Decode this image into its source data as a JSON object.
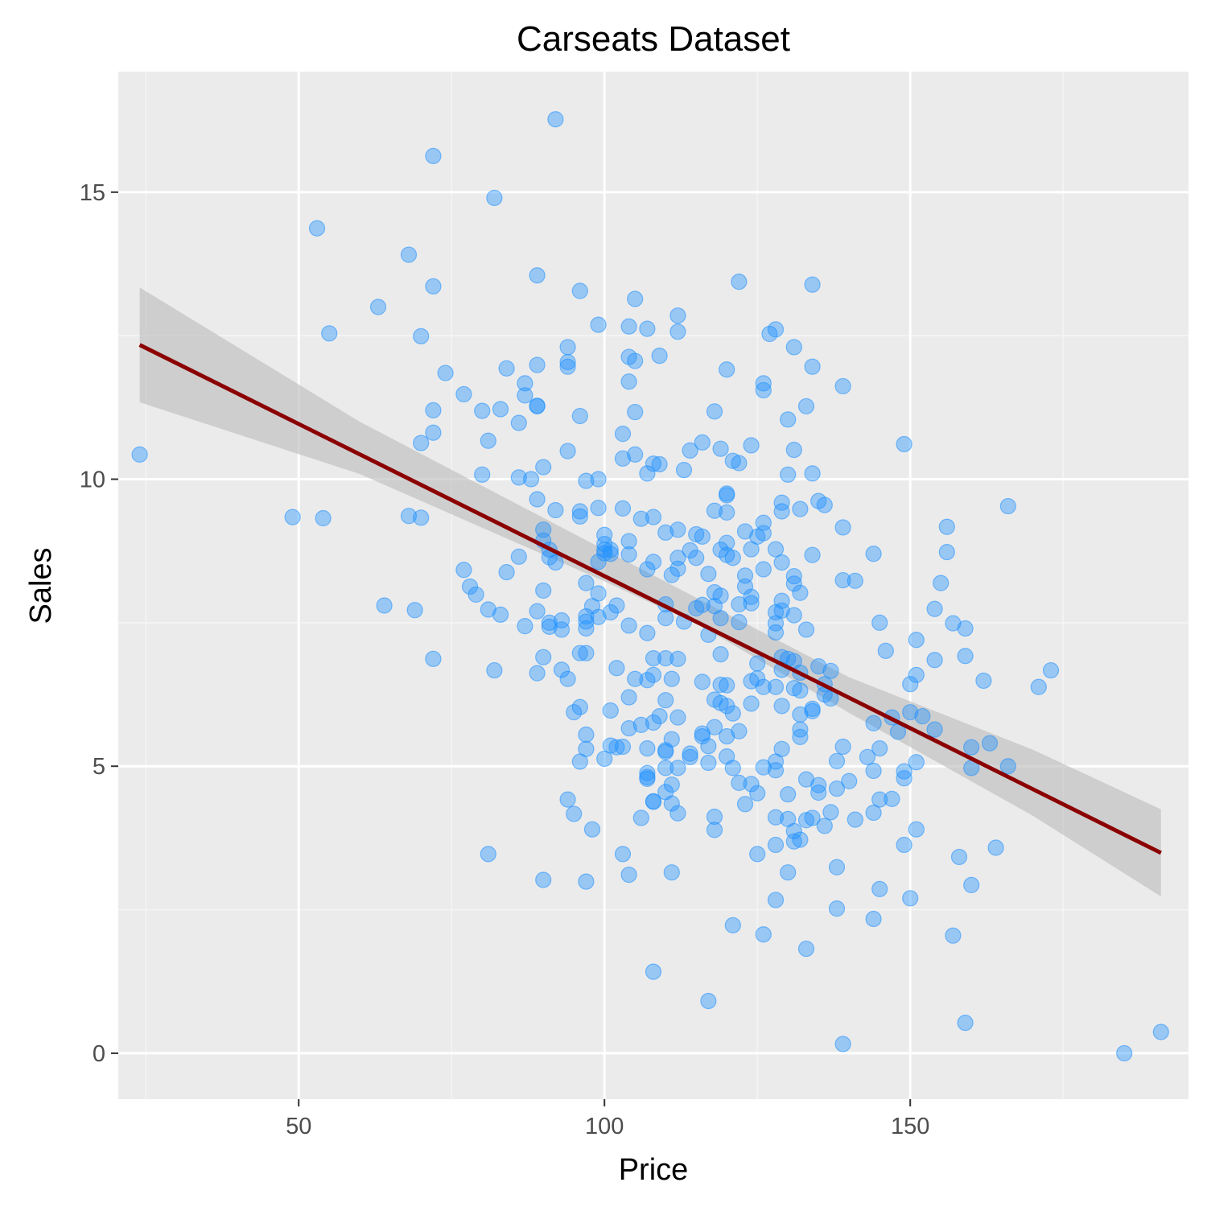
{
  "chart_data": {
    "type": "scatter",
    "title": "Carseats Dataset",
    "xlabel": "Price",
    "ylabel": "Sales",
    "xlim": [
      20.5,
      195.5
    ],
    "ylim": [
      -0.8,
      17.1
    ],
    "x_ticks": [
      50,
      100,
      150
    ],
    "y_ticks": [
      0,
      5,
      10,
      15
    ],
    "x_tick_labels": [
      "50",
      "100",
      "150"
    ],
    "y_tick_labels": [
      "0",
      "5",
      "10",
      "15"
    ],
    "grid": true,
    "legend": "none",
    "colors": {
      "panel_background": "#EBEBEB",
      "grid_major": "#FFFFFF",
      "grid_minor": "#F5F5F5",
      "points": "#1E90FF",
      "fit_line": "#8B0000",
      "confidence_band": "#BEBEBE"
    },
    "points": [
      [
        24,
        10.43
      ],
      [
        49,
        9.34
      ],
      [
        53,
        14.37
      ],
      [
        54,
        9.32
      ],
      [
        55,
        12.54
      ],
      [
        63,
        13.0
      ],
      [
        64,
        7.8
      ],
      [
        68,
        13.91
      ],
      [
        68,
        9.36
      ],
      [
        69,
        7.72
      ],
      [
        70,
        12.49
      ],
      [
        70,
        10.63
      ],
      [
        70,
        9.33
      ],
      [
        72,
        15.63
      ],
      [
        72,
        13.36
      ],
      [
        72,
        11.2
      ],
      [
        72,
        10.81
      ],
      [
        72,
        6.87
      ],
      [
        74,
        11.85
      ],
      [
        77,
        11.48
      ],
      [
        77,
        8.42
      ],
      [
        78,
        8.13
      ],
      [
        79,
        7.99
      ],
      [
        80,
        11.19
      ],
      [
        80,
        10.08
      ],
      [
        81,
        10.67
      ],
      [
        81,
        7.73
      ],
      [
        81,
        3.47
      ],
      [
        82,
        14.9
      ],
      [
        82,
        6.67
      ],
      [
        83,
        11.22
      ],
      [
        83,
        7.64
      ],
      [
        84,
        11.93
      ],
      [
        84,
        8.38
      ],
      [
        86,
        10.98
      ],
      [
        86,
        10.03
      ],
      [
        86,
        8.65
      ],
      [
        87,
        11.67
      ],
      [
        87,
        11.46
      ],
      [
        87,
        7.44
      ],
      [
        88,
        10.0
      ],
      [
        89,
        13.55
      ],
      [
        89,
        11.99
      ],
      [
        89,
        11.27
      ],
      [
        89,
        11.28
      ],
      [
        89,
        9.65
      ],
      [
        89,
        7.7
      ],
      [
        89,
        6.62
      ],
      [
        90,
        10.21
      ],
      [
        90,
        9.12
      ],
      [
        90,
        8.93
      ],
      [
        90,
        8.06
      ],
      [
        90,
        6.9
      ],
      [
        90,
        3.02
      ],
      [
        91,
        8.77
      ],
      [
        91,
        8.64
      ],
      [
        91,
        7.5
      ],
      [
        91,
        7.43
      ],
      [
        92,
        16.27
      ],
      [
        92,
        9.46
      ],
      [
        92,
        8.55
      ],
      [
        93,
        7.54
      ],
      [
        93,
        7.38
      ],
      [
        93,
        6.68
      ],
      [
        94,
        12.3
      ],
      [
        94,
        11.96
      ],
      [
        94,
        12.04
      ],
      [
        94,
        10.49
      ],
      [
        94,
        6.52
      ],
      [
        94,
        4.42
      ],
      [
        95,
        5.94
      ],
      [
        95,
        4.17
      ],
      [
        96,
        13.28
      ],
      [
        96,
        11.1
      ],
      [
        96,
        9.44
      ],
      [
        96,
        9.35
      ],
      [
        96,
        6.97
      ],
      [
        96,
        6.03
      ],
      [
        96,
        5.08
      ],
      [
        97,
        9.97
      ],
      [
        97,
        8.19
      ],
      [
        97,
        7.61
      ],
      [
        97,
        7.4
      ],
      [
        97,
        7.52
      ],
      [
        97,
        6.97
      ],
      [
        97,
        5.55
      ],
      [
        97,
        5.3
      ],
      [
        97,
        2.99
      ],
      [
        98,
        7.79
      ],
      [
        98,
        3.9
      ],
      [
        99,
        12.69
      ],
      [
        99,
        10.0
      ],
      [
        99,
        9.5
      ],
      [
        99,
        8.56
      ],
      [
        99,
        8.01
      ],
      [
        99,
        7.6
      ],
      [
        100,
        9.03
      ],
      [
        100,
        8.87
      ],
      [
        100,
        8.77
      ],
      [
        100,
        8.71
      ],
      [
        100,
        5.13
      ],
      [
        101,
        8.77
      ],
      [
        101,
        8.7
      ],
      [
        101,
        7.68
      ],
      [
        101,
        5.97
      ],
      [
        101,
        5.36
      ],
      [
        102,
        7.8
      ],
      [
        102,
        6.71
      ],
      [
        102,
        5.33
      ],
      [
        103,
        10.79
      ],
      [
        103,
        10.36
      ],
      [
        103,
        9.49
      ],
      [
        103,
        5.34
      ],
      [
        103,
        3.47
      ],
      [
        104,
        12.66
      ],
      [
        104,
        12.13
      ],
      [
        104,
        11.7
      ],
      [
        104,
        8.92
      ],
      [
        104,
        8.69
      ],
      [
        104,
        7.45
      ],
      [
        104,
        6.2
      ],
      [
        104,
        5.66
      ],
      [
        104,
        3.11
      ],
      [
        105,
        13.14
      ],
      [
        105,
        12.06
      ],
      [
        105,
        11.17
      ],
      [
        105,
        10.43
      ],
      [
        105,
        6.52
      ],
      [
        106,
        9.31
      ],
      [
        106,
        5.72
      ],
      [
        106,
        4.1
      ],
      [
        107,
        12.62
      ],
      [
        107,
        10.1
      ],
      [
        107,
        8.43
      ],
      [
        107,
        7.32
      ],
      [
        107,
        6.5
      ],
      [
        107,
        5.31
      ],
      [
        107,
        4.81
      ],
      [
        107,
        4.88
      ],
      [
        107,
        4.78
      ],
      [
        108,
        10.27
      ],
      [
        108,
        9.34
      ],
      [
        108,
        8.56
      ],
      [
        108,
        6.88
      ],
      [
        108,
        6.59
      ],
      [
        108,
        5.76
      ],
      [
        108,
        4.38
      ],
      [
        108,
        4.39
      ],
      [
        108,
        1.42
      ],
      [
        109,
        12.15
      ],
      [
        109,
        10.26
      ],
      [
        109,
        5.87
      ],
      [
        110,
        9.07
      ],
      [
        110,
        7.82
      ],
      [
        110,
        7.58
      ],
      [
        110,
        6.88
      ],
      [
        110,
        6.15
      ],
      [
        110,
        5.25
      ],
      [
        110,
        5.28
      ],
      [
        110,
        4.97
      ],
      [
        110,
        4.55
      ],
      [
        111,
        8.33
      ],
      [
        111,
        6.52
      ],
      [
        111,
        5.47
      ],
      [
        111,
        4.68
      ],
      [
        111,
        4.35
      ],
      [
        111,
        3.15
      ],
      [
        112,
        12.85
      ],
      [
        112,
        12.57
      ],
      [
        112,
        9.12
      ],
      [
        112,
        8.63
      ],
      [
        112,
        8.44
      ],
      [
        112,
        6.87
      ],
      [
        112,
        5.85
      ],
      [
        112,
        4.97
      ],
      [
        112,
        4.18
      ],
      [
        113,
        10.16
      ],
      [
        113,
        7.52
      ],
      [
        114,
        10.5
      ],
      [
        114,
        8.76
      ],
      [
        114,
        5.22
      ],
      [
        114,
        5.16
      ],
      [
        115,
        8.63
      ],
      [
        115,
        9.04
      ],
      [
        115,
        7.75
      ],
      [
        116,
        10.64
      ],
      [
        116,
        9.0
      ],
      [
        116,
        7.81
      ],
      [
        116,
        6.47
      ],
      [
        116,
        5.57
      ],
      [
        116,
        5.52
      ],
      [
        117,
        8.35
      ],
      [
        117,
        7.29
      ],
      [
        117,
        5.35
      ],
      [
        117,
        5.06
      ],
      [
        117,
        0.91
      ],
      [
        118,
        11.18
      ],
      [
        118,
        9.45
      ],
      [
        118,
        8.03
      ],
      [
        118,
        7.79
      ],
      [
        118,
        6.16
      ],
      [
        118,
        5.68
      ],
      [
        118,
        4.12
      ],
      [
        118,
        3.89
      ],
      [
        119,
        10.53
      ],
      [
        119,
        8.77
      ],
      [
        119,
        7.97
      ],
      [
        119,
        7.58
      ],
      [
        119,
        6.95
      ],
      [
        119,
        6.42
      ],
      [
        119,
        6.1
      ],
      [
        120,
        11.91
      ],
      [
        120,
        9.72
      ],
      [
        120,
        9.75
      ],
      [
        120,
        9.42
      ],
      [
        120,
        8.89
      ],
      [
        120,
        8.68
      ],
      [
        120,
        6.41
      ],
      [
        120,
        6.05
      ],
      [
        120,
        5.52
      ],
      [
        120,
        5.17
      ],
      [
        121,
        10.32
      ],
      [
        121,
        8.63
      ],
      [
        121,
        5.92
      ],
      [
        121,
        4.97
      ],
      [
        121,
        2.23
      ],
      [
        122,
        13.44
      ],
      [
        122,
        10.28
      ],
      [
        122,
        7.82
      ],
      [
        122,
        7.51
      ],
      [
        122,
        5.61
      ],
      [
        122,
        4.71
      ],
      [
        123,
        9.09
      ],
      [
        123,
        8.32
      ],
      [
        123,
        8.13
      ],
      [
        123,
        4.34
      ],
      [
        124,
        10.59
      ],
      [
        124,
        8.78
      ],
      [
        124,
        7.95
      ],
      [
        124,
        7.84
      ],
      [
        124,
        6.48
      ],
      [
        124,
        6.09
      ],
      [
        124,
        4.69
      ],
      [
        125,
        9.0
      ],
      [
        125,
        6.79
      ],
      [
        125,
        6.53
      ],
      [
        125,
        4.53
      ],
      [
        125,
        3.47
      ],
      [
        126,
        11.67
      ],
      [
        126,
        11.55
      ],
      [
        126,
        9.24
      ],
      [
        126,
        9.06
      ],
      [
        126,
        8.43
      ],
      [
        126,
        6.38
      ],
      [
        126,
        4.98
      ],
      [
        126,
        2.07
      ],
      [
        127,
        12.53
      ],
      [
        128,
        12.61
      ],
      [
        128,
        8.78
      ],
      [
        128,
        7.68
      ],
      [
        128,
        7.49
      ],
      [
        128,
        7.33
      ],
      [
        128,
        6.38
      ],
      [
        128,
        5.08
      ],
      [
        128,
        4.93
      ],
      [
        128,
        4.11
      ],
      [
        128,
        3.63
      ],
      [
        128,
        2.67
      ],
      [
        129,
        9.59
      ],
      [
        129,
        9.44
      ],
      [
        129,
        8.55
      ],
      [
        129,
        7.88
      ],
      [
        129,
        7.71
      ],
      [
        129,
        6.9
      ],
      [
        129,
        6.68
      ],
      [
        129,
        6.05
      ],
      [
        129,
        5.3
      ],
      [
        130,
        11.04
      ],
      [
        130,
        10.08
      ],
      [
        130,
        6.87
      ],
      [
        130,
        4.51
      ],
      [
        130,
        4.08
      ],
      [
        130,
        3.15
      ],
      [
        131,
        12.3
      ],
      [
        131,
        10.51
      ],
      [
        131,
        8.31
      ],
      [
        131,
        8.18
      ],
      [
        131,
        7.63
      ],
      [
        131,
        6.83
      ],
      [
        131,
        6.36
      ],
      [
        131,
        3.87
      ],
      [
        131,
        3.69
      ],
      [
        132,
        9.48
      ],
      [
        132,
        8.02
      ],
      [
        132,
        6.63
      ],
      [
        132,
        6.32
      ],
      [
        132,
        5.9
      ],
      [
        132,
        5.64
      ],
      [
        132,
        5.51
      ],
      [
        132,
        3.72
      ],
      [
        133,
        11.27
      ],
      [
        133,
        7.38
      ],
      [
        133,
        4.77
      ],
      [
        133,
        4.06
      ],
      [
        133,
        1.82
      ],
      [
        134,
        13.39
      ],
      [
        134,
        11.96
      ],
      [
        134,
        10.1
      ],
      [
        134,
        8.68
      ],
      [
        134,
        6.0
      ],
      [
        134,
        5.96
      ],
      [
        134,
        4.1
      ],
      [
        135,
        9.62
      ],
      [
        135,
        6.74
      ],
      [
        135,
        4.67
      ],
      [
        135,
        4.54
      ],
      [
        136,
        9.55
      ],
      [
        136,
        6.43
      ],
      [
        136,
        6.25
      ],
      [
        136,
        3.96
      ],
      [
        137,
        6.66
      ],
      [
        137,
        6.18
      ],
      [
        137,
        4.2
      ],
      [
        138,
        4.61
      ],
      [
        138,
        5.09
      ],
      [
        138,
        3.24
      ],
      [
        138,
        2.52
      ],
      [
        139,
        11.62
      ],
      [
        139,
        9.16
      ],
      [
        139,
        8.24
      ],
      [
        139,
        5.34
      ],
      [
        139,
        0.16
      ],
      [
        140,
        4.74
      ],
      [
        141,
        8.23
      ],
      [
        141,
        4.07
      ],
      [
        143,
        5.16
      ],
      [
        144,
        8.7
      ],
      [
        144,
        5.75
      ],
      [
        144,
        4.92
      ],
      [
        144,
        4.19
      ],
      [
        144,
        2.34
      ],
      [
        145,
        7.5
      ],
      [
        145,
        5.31
      ],
      [
        145,
        4.42
      ],
      [
        145,
        2.86
      ],
      [
        146,
        7.01
      ],
      [
        147,
        5.85
      ],
      [
        147,
        4.43
      ],
      [
        148,
        5.6
      ],
      [
        149,
        10.61
      ],
      [
        149,
        4.91
      ],
      [
        149,
        4.79
      ],
      [
        149,
        3.63
      ],
      [
        150,
        6.43
      ],
      [
        150,
        5.94
      ],
      [
        150,
        2.7
      ],
      [
        151,
        7.2
      ],
      [
        151,
        6.59
      ],
      [
        151,
        5.07
      ],
      [
        151,
        3.9
      ],
      [
        152,
        5.87
      ],
      [
        154,
        6.85
      ],
      [
        154,
        5.64
      ],
      [
        154,
        7.74
      ],
      [
        155,
        8.19
      ],
      [
        156,
        9.17
      ],
      [
        156,
        8.73
      ],
      [
        157,
        7.49
      ],
      [
        157,
        2.05
      ],
      [
        158,
        3.42
      ],
      [
        159,
        7.4
      ],
      [
        159,
        6.92
      ],
      [
        159,
        0.53
      ],
      [
        160,
        5.33
      ],
      [
        160,
        4.97
      ],
      [
        160,
        2.93
      ],
      [
        162,
        6.49
      ],
      [
        163,
        5.4
      ],
      [
        164,
        3.58
      ],
      [
        166,
        9.53
      ],
      [
        166,
        5.0
      ],
      [
        171,
        6.38
      ],
      [
        173,
        6.67
      ],
      [
        185,
        0.0
      ],
      [
        191,
        0.37
      ]
    ],
    "fit": {
      "method": "lm",
      "x_range": [
        24,
        191
      ],
      "line": [
        [
          24,
          12.34
        ],
        [
          191,
          3.49
        ]
      ],
      "band_upper": [
        [
          24,
          13.34
        ],
        [
          60,
          11.0
        ],
        [
          100,
          8.77
        ],
        [
          116,
          7.88
        ],
        [
          140,
          6.55
        ],
        [
          170,
          5.29
        ],
        [
          191,
          4.25
        ]
      ],
      "band_lower": [
        [
          24,
          11.34
        ],
        [
          60,
          10.09
        ],
        [
          100,
          8.22
        ],
        [
          116,
          7.43
        ],
        [
          140,
          5.93
        ],
        [
          170,
          4.14
        ],
        [
          191,
          2.73
        ]
      ]
    }
  }
}
